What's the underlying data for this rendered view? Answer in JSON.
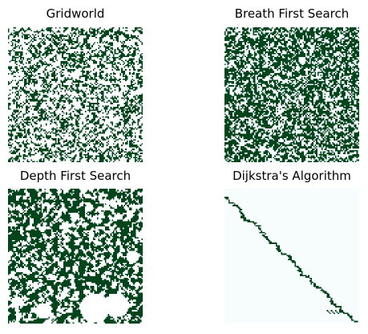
{
  "chart_data": [
    {
      "type": "heatmap",
      "title": "Gridworld",
      "grid_size": [
        100,
        100
      ],
      "colors": {
        "empty": "#ffffff",
        "wall": "#00441b"
      },
      "axes": "off",
      "wall_fraction": 0.4
    },
    {
      "type": "heatmap",
      "title": "Breath First Search",
      "grid_size": [
        100,
        100
      ],
      "colors": {
        "unvisited": "#f7fcfd",
        "visited": "#00441b"
      },
      "axes": "off",
      "visited_fraction": 0.6
    },
    {
      "type": "heatmap",
      "title": "Depth First Search",
      "grid_size": [
        100,
        100
      ],
      "colors": {
        "unvisited": "#ffffff",
        "visited": "#00441b"
      },
      "axes": "off",
      "visited_fraction": 0.58
    },
    {
      "type": "heatmap",
      "title": "Dijkstra's Algorithm",
      "grid_size": [
        100,
        100
      ],
      "colors": {
        "background": "#f7fcfd",
        "path": "#00441b"
      },
      "axes": "off",
      "path": "diagonal from top-left to bottom-right"
    }
  ]
}
